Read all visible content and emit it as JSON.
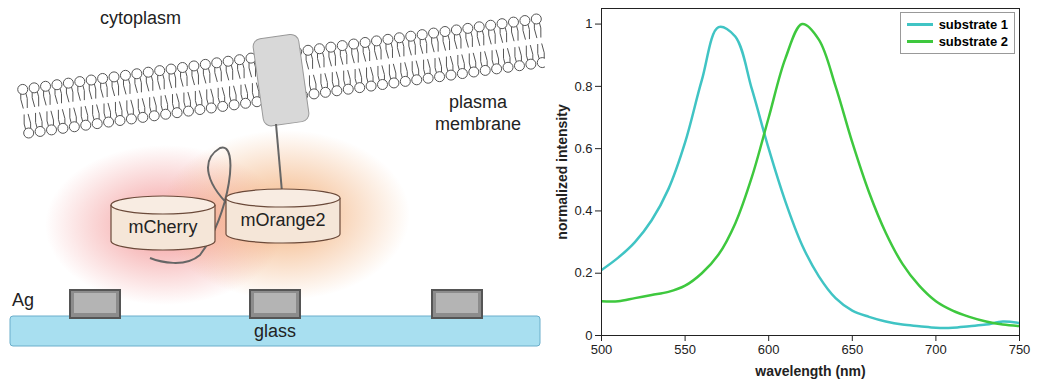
{
  "chart_data": {
    "type": "line",
    "x": [
      500,
      510,
      520,
      530,
      540,
      550,
      560,
      570,
      580,
      590,
      600,
      610,
      620,
      630,
      640,
      650,
      660,
      670,
      680,
      690,
      700,
      710,
      720,
      730,
      740,
      750
    ],
    "series": [
      {
        "name": "substrate 1",
        "color": "#40c4c4",
        "values": [
          0.21,
          0.25,
          0.3,
          0.37,
          0.47,
          0.62,
          0.82,
          0.99,
          0.96,
          0.79,
          0.6,
          0.43,
          0.29,
          0.19,
          0.12,
          0.08,
          0.06,
          0.045,
          0.035,
          0.03,
          0.025,
          0.025,
          0.03,
          0.035,
          0.045,
          0.04
        ]
      },
      {
        "name": "substrate 2",
        "color": "#3ec83e",
        "values": [
          0.11,
          0.11,
          0.12,
          0.13,
          0.14,
          0.16,
          0.2,
          0.26,
          0.36,
          0.51,
          0.7,
          0.89,
          1.0,
          0.95,
          0.8,
          0.62,
          0.46,
          0.33,
          0.23,
          0.16,
          0.11,
          0.08,
          0.06,
          0.045,
          0.035,
          0.03
        ]
      }
    ],
    "xlabel": "wavelength (nm)",
    "ylabel": "normalized intensity",
    "xlim": [
      500,
      750
    ],
    "xticks": [
      500,
      550,
      600,
      650,
      700,
      750
    ],
    "ylim": [
      0,
      1.05
    ],
    "yticks": [
      0,
      0.2,
      0.4,
      0.6,
      0.8,
      1
    ],
    "grid": false,
    "legend": "upper right"
  },
  "diagram": {
    "cytoplasm": "cytoplasm",
    "membrane": "plasma membrane",
    "protein_1": "mCherry",
    "protein_2": "mOrange2",
    "metal": "Ag",
    "substrate": "glass"
  }
}
